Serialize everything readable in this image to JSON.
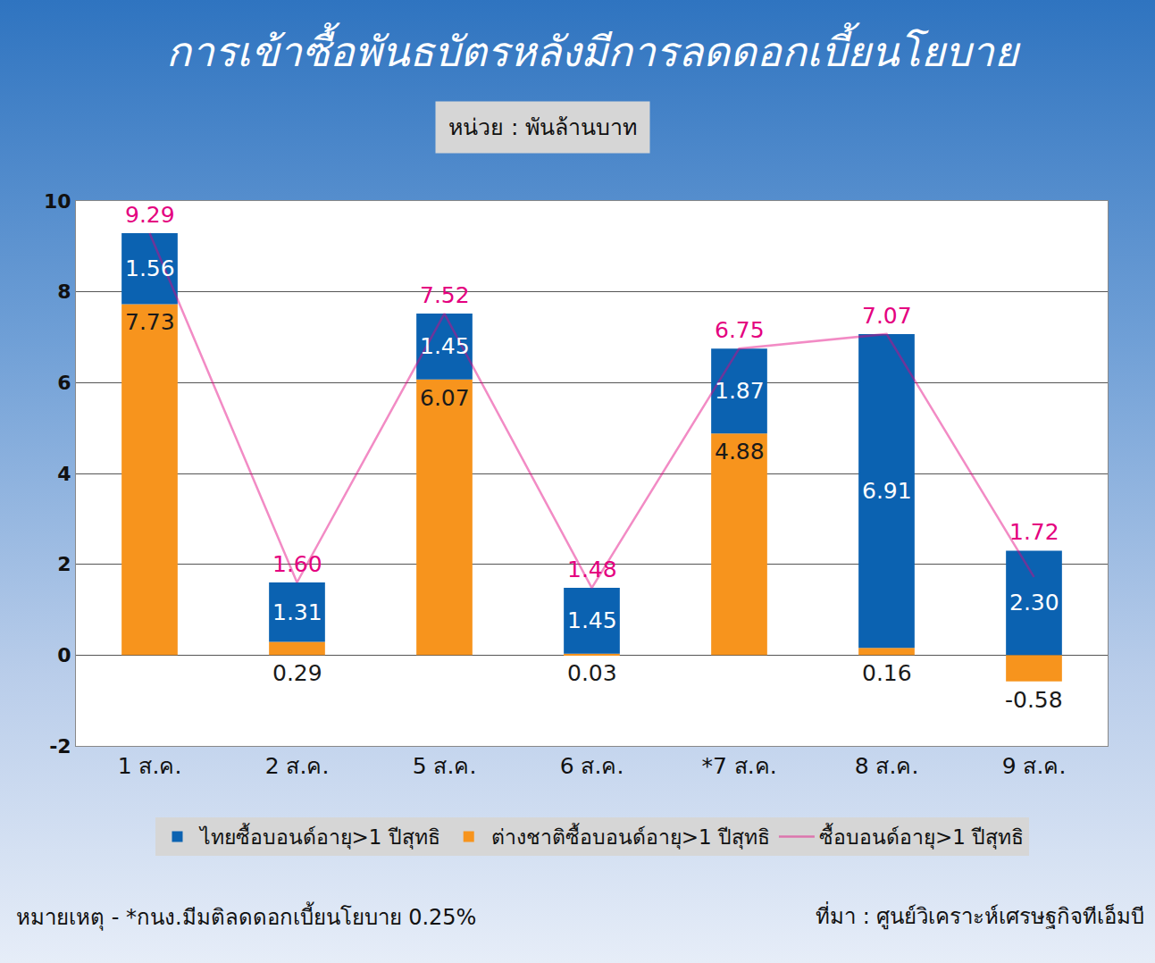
{
  "chart_data": {
    "type": "bar",
    "title": "การเข้าซื้อพันธบัตรหลังมีการลดดอกเบี้ยนโยบาย",
    "subtitle": "หน่วย : พันล้านบาท",
    "categories": [
      "1 ส.ค.",
      "2 ส.ค.",
      "5 ส.ค.",
      "6 ส.ค.",
      "*7 ส.ค.",
      "8 ส.ค.",
      "9 ส.ค."
    ],
    "series": [
      {
        "name": "ไทยซื้อบอนด์อายุ>1 ปีสุทธิ",
        "color": "#0b62b1",
        "values": [
          1.56,
          1.31,
          1.45,
          1.45,
          1.87,
          6.91,
          2.3
        ],
        "value_labels": [
          "1.56",
          "1.31",
          "1.45",
          "1.45",
          "1.87",
          "6.91",
          "2.30"
        ]
      },
      {
        "name": "ต่างชาติซื้อบอนด์อายุ>1 ปีสุทธิ",
        "color": "#f7941d",
        "values": [
          7.73,
          0.29,
          6.07,
          0.03,
          4.88,
          0.16,
          -0.58
        ],
        "value_labels": [
          "7.73",
          "0.29",
          "6.07",
          "0.03",
          "4.88",
          "0.16",
          "-0.58"
        ]
      },
      {
        "name": "ซื้อบอนด์อายุ>1 ปีสุทธิ",
        "type": "line",
        "color": "#e4007f",
        "values": [
          9.29,
          1.6,
          7.52,
          1.48,
          6.75,
          7.07,
          1.72
        ],
        "value_labels": [
          "9.29",
          "1.60",
          "7.52",
          "1.48",
          "6.75",
          "7.07",
          "1.72"
        ]
      }
    ],
    "stacked": true,
    "data_labels": true,
    "ylim": [
      -2,
      10
    ],
    "yticks": [
      -2,
      0,
      2,
      4,
      6,
      8,
      10
    ],
    "grid": true,
    "legend": "bottom",
    "annotations": [
      "หมายเหตุ - *กนง.มีมติลดดอกเบี้ยนโยบาย 0.25%",
      "ที่มา : ศูนย์วิเคราะห์เศรษฐกิจทีเอ็มบี"
    ]
  }
}
